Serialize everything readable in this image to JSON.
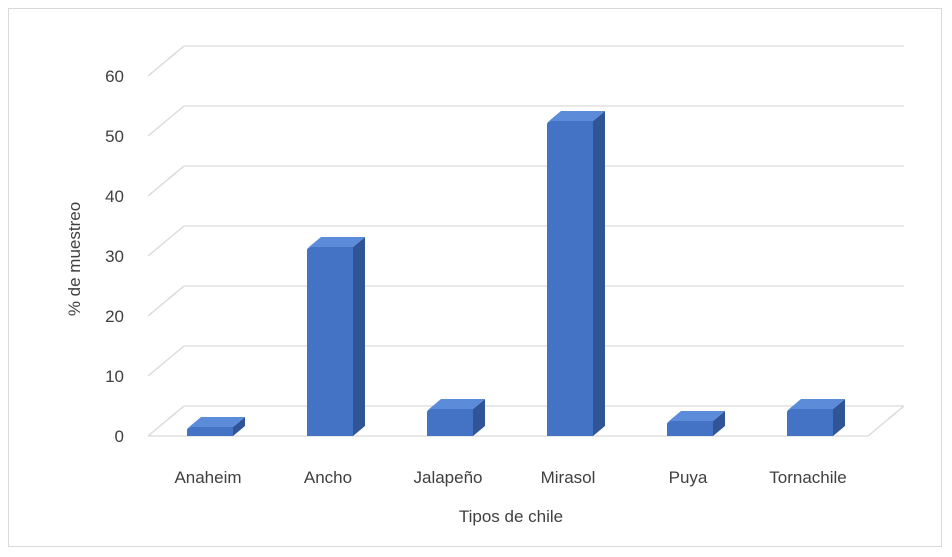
{
  "chart_data": {
    "type": "bar",
    "title": "",
    "xlabel": "Tipos de chile",
    "ylabel": "% de muestreo",
    "categories": [
      "Anaheim",
      "Ancho",
      "Jalapeño",
      "Mirasol",
      "Puya",
      "Tornachile"
    ],
    "values": [
      1.5,
      31.5,
      4.5,
      52.5,
      2.5,
      4.5
    ],
    "ylim": [
      0,
      60
    ],
    "yticks": [
      "0",
      "10",
      "20",
      "30",
      "40",
      "50",
      "60"
    ],
    "grid": true,
    "legend": "none",
    "colors": {
      "bar_front": "#4472c4",
      "bar_side": "#2f5597",
      "bar_top": "#5b8bd9",
      "grid": "#d9d9d9",
      "text": "#404040"
    }
  }
}
